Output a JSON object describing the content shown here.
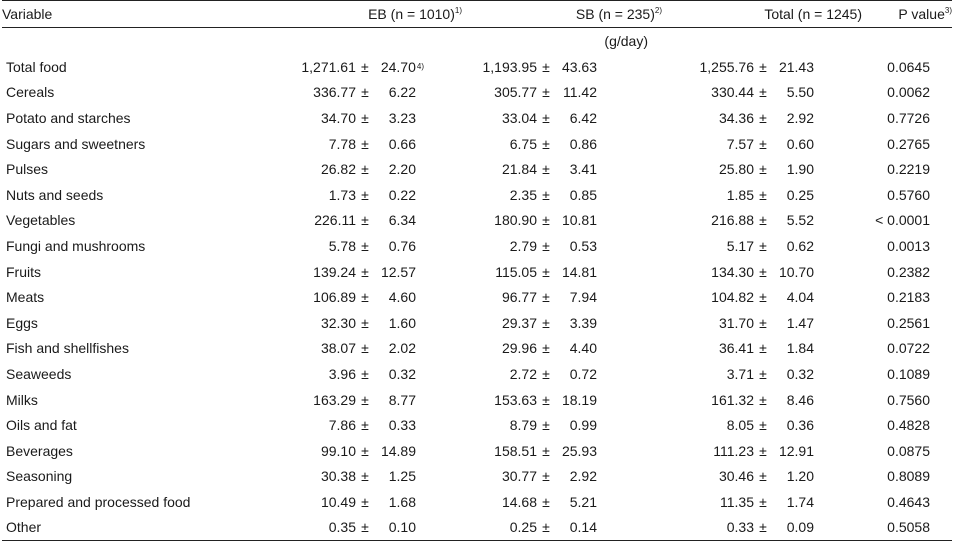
{
  "header": {
    "variable": "Variable",
    "eb": "EB (n = 1010)",
    "eb_sup": "1)",
    "sb": "SB (n = 235)",
    "sb_sup": "2)",
    "total": "Total (n = 1245)",
    "p": "P value",
    "p_sup": "3)"
  },
  "unit": "(g/day)",
  "pm": "±",
  "rows": [
    {
      "name": "Total food",
      "eb_mean": "1,271.61",
      "eb_sd": "24.70",
      "eb_note": "4)",
      "sb_mean": "1,193.95",
      "sb_sd": "43.63",
      "total_mean": "1,255.76",
      "total_sd": "21.43",
      "p": "0.0645"
    },
    {
      "name": "Cereals",
      "eb_mean": "336.77",
      "eb_sd": "6.22",
      "sb_mean": "305.77",
      "sb_sd": "11.42",
      "total_mean": "330.44",
      "total_sd": "5.50",
      "p": "0.0062"
    },
    {
      "name": "Potato and starches",
      "eb_mean": "34.70",
      "eb_sd": "3.23",
      "sb_mean": "33.04",
      "sb_sd": "6.42",
      "total_mean": "34.36",
      "total_sd": "2.92",
      "p": "0.7726"
    },
    {
      "name": "Sugars and sweetners",
      "eb_mean": "7.78",
      "eb_sd": "0.66",
      "sb_mean": "6.75",
      "sb_sd": "0.86",
      "total_mean": "7.57",
      "total_sd": "0.60",
      "p": "0.2765"
    },
    {
      "name": "Pulses",
      "eb_mean": "26.82",
      "eb_sd": "2.20",
      "sb_mean": "21.84",
      "sb_sd": "3.41",
      "total_mean": "25.80",
      "total_sd": "1.90",
      "p": "0.2219"
    },
    {
      "name": "Nuts and seeds",
      "eb_mean": "1.73",
      "eb_sd": "0.22",
      "sb_mean": "2.35",
      "sb_sd": "0.85",
      "total_mean": "1.85",
      "total_sd": "0.25",
      "p": "0.5760"
    },
    {
      "name": "Vegetables",
      "eb_mean": "226.11",
      "eb_sd": "6.34",
      "sb_mean": "180.90",
      "sb_sd": "10.81",
      "total_mean": "216.88",
      "total_sd": "5.52",
      "p": "< 0.0001"
    },
    {
      "name": "Fungi and mushrooms",
      "eb_mean": "5.78",
      "eb_sd": "0.76",
      "sb_mean": "2.79",
      "sb_sd": "0.53",
      "total_mean": "5.17",
      "total_sd": "0.62",
      "p": "0.0013"
    },
    {
      "name": "Fruits",
      "eb_mean": "139.24",
      "eb_sd": "12.57",
      "sb_mean": "115.05",
      "sb_sd": "14.81",
      "total_mean": "134.30",
      "total_sd": "10.70",
      "p": "0.2382"
    },
    {
      "name": "Meats",
      "eb_mean": "106.89",
      "eb_sd": "4.60",
      "sb_mean": "96.77",
      "sb_sd": "7.94",
      "total_mean": "104.82",
      "total_sd": "4.04",
      "p": "0.2183"
    },
    {
      "name": "Eggs",
      "eb_mean": "32.30",
      "eb_sd": "1.60",
      "sb_mean": "29.37",
      "sb_sd": "3.39",
      "total_mean": "31.70",
      "total_sd": "1.47",
      "p": "0.2561"
    },
    {
      "name": "Fish and shellfishes",
      "eb_mean": "38.07",
      "eb_sd": "2.02",
      "sb_mean": "29.96",
      "sb_sd": "4.40",
      "total_mean": "36.41",
      "total_sd": "1.84",
      "p": "0.0722"
    },
    {
      "name": "Seaweeds",
      "eb_mean": "3.96",
      "eb_sd": "0.32",
      "sb_mean": "2.72",
      "sb_sd": "0.72",
      "total_mean": "3.71",
      "total_sd": "0.32",
      "p": "0.1089"
    },
    {
      "name": "Milks",
      "eb_mean": "163.29",
      "eb_sd": "8.77",
      "sb_mean": "153.63",
      "sb_sd": "18.19",
      "total_mean": "161.32",
      "total_sd": "8.46",
      "p": "0.7560"
    },
    {
      "name": "Oils and fat",
      "eb_mean": "7.86",
      "eb_sd": "0.33",
      "sb_mean": "8.79",
      "sb_sd": "0.99",
      "total_mean": "8.05",
      "total_sd": "0.36",
      "p": "0.4828"
    },
    {
      "name": "Beverages",
      "eb_mean": "99.10",
      "eb_sd": "14.89",
      "sb_mean": "158.51",
      "sb_sd": "25.93",
      "total_mean": "111.23",
      "total_sd": "12.91",
      "p": "0.0875"
    },
    {
      "name": "Seasoning",
      "eb_mean": "30.38",
      "eb_sd": "1.25",
      "sb_mean": "30.77",
      "sb_sd": "2.92",
      "total_mean": "30.46",
      "total_sd": "1.20",
      "p": "0.8089"
    },
    {
      "name": "Prepared and processed food",
      "eb_mean": "10.49",
      "eb_sd": "1.68",
      "sb_mean": "14.68",
      "sb_sd": "5.21",
      "total_mean": "11.35",
      "total_sd": "1.74",
      "p": "0.4643"
    },
    {
      "name": "Other",
      "eb_mean": "0.35",
      "eb_sd": "0.10",
      "sb_mean": "0.25",
      "sb_sd": "0.14",
      "total_mean": "0.33",
      "total_sd": "0.09",
      "p": "0.5058"
    }
  ]
}
